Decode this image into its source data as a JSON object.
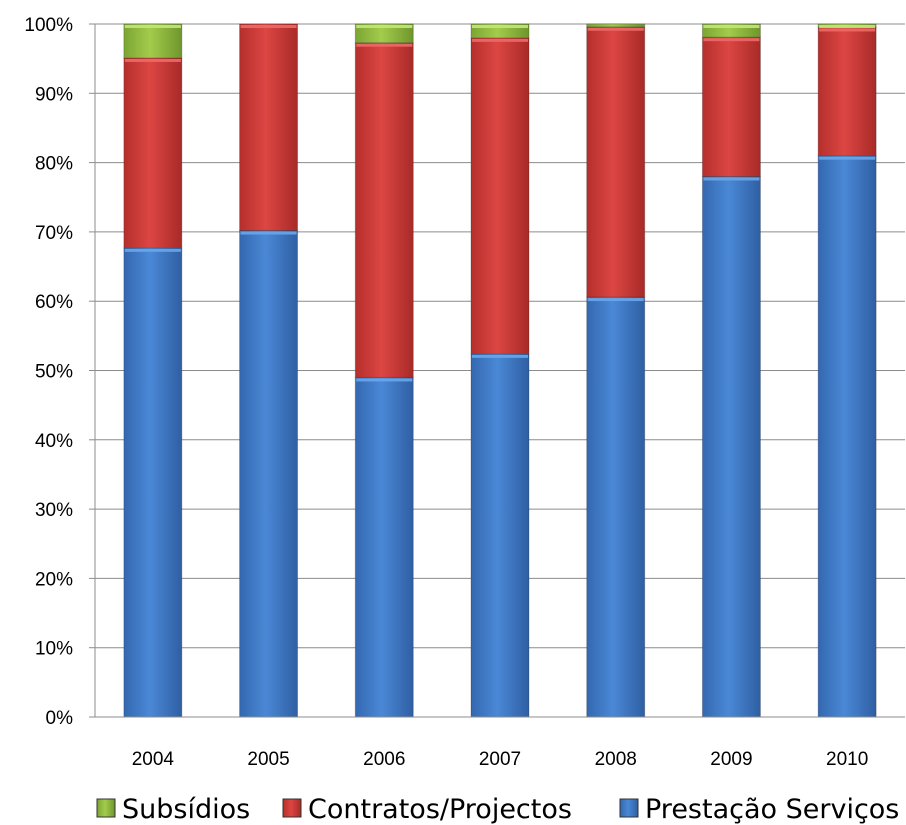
{
  "chart_data": {
    "type": "bar",
    "stacked": true,
    "percent": true,
    "title": "",
    "xlabel": "",
    "ylabel": "",
    "ylim": [
      0,
      100
    ],
    "yticks": [
      "0%",
      "10%",
      "20%",
      "30%",
      "40%",
      "50%",
      "60%",
      "70%",
      "80%",
      "90%",
      "100%"
    ],
    "grid": true,
    "legend_position": "bottom",
    "categories": [
      "2004",
      "2005",
      "2006",
      "2007",
      "2008",
      "2009",
      "2010"
    ],
    "series": [
      {
        "name": "Prestação Serviços",
        "color": "#3c78c8",
        "values": [
          67.7,
          70.2,
          49.0,
          52.4,
          60.6,
          78.0,
          81.0
        ]
      },
      {
        "name": "Contratos/Projectos",
        "color": "#c83a37",
        "values": [
          27.4,
          29.8,
          48.3,
          45.6,
          39.0,
          20.1,
          18.5
        ]
      },
      {
        "name": "Subsídios",
        "color": "#8dba3a",
        "values": [
          4.9,
          0.0,
          2.7,
          2.0,
          0.4,
          1.9,
          0.5
        ]
      }
    ],
    "legend": [
      "Subsídios",
      "Contratos/Projectos",
      "Prestação Serviços"
    ]
  }
}
